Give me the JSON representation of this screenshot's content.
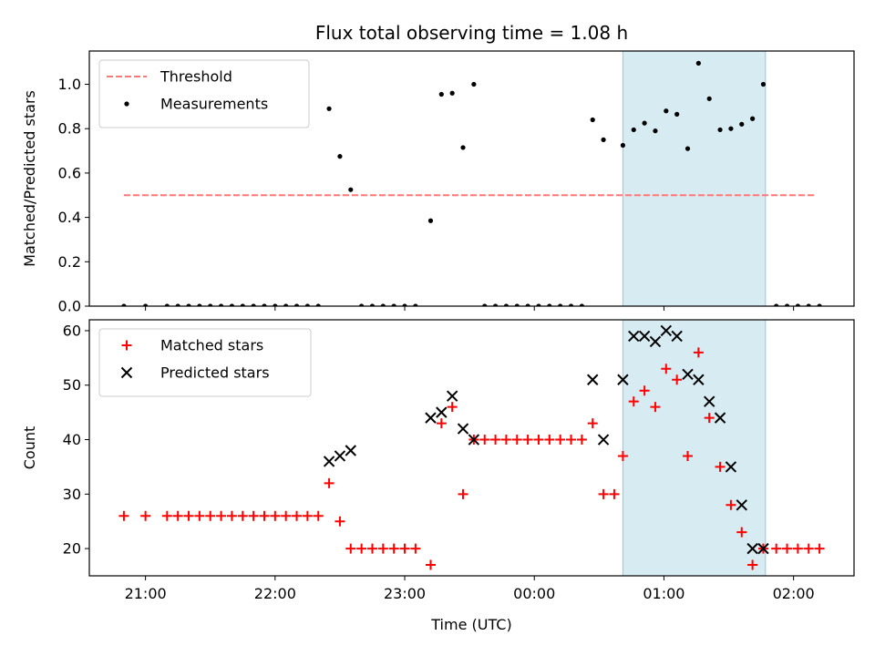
{
  "chart_data": {
    "type": "scatter",
    "title": "Flux total observing time = 1.08 h",
    "xlabel": "Time (UTC)",
    "x_ticks": [
      "21:00",
      "22:00",
      "23:00",
      "00:00",
      "01:00",
      "02:00"
    ],
    "x_range": [
      "20:34",
      "02:28"
    ],
    "highlight_span": {
      "start": "00:41",
      "end": "01:47",
      "color": "#add8e6"
    },
    "panels": [
      {
        "ylabel": "Matched/Predicted stars",
        "ylim": [
          0,
          1.15
        ],
        "y_ticks": [
          "0.0",
          "0.2",
          "0.4",
          "0.6",
          "0.8",
          "1.0"
        ],
        "legend": {
          "placement": "upper-left"
        },
        "threshold": {
          "name": "Threshold",
          "value": 0.5,
          "x_start": "20:50",
          "x_end": "02:10",
          "color": "#ff7777"
        },
        "series": [
          {
            "name": "Measurements",
            "marker": "dot",
            "color": "#000000",
            "points": [
              [
                "20:50",
                0
              ],
              [
                "21:00",
                0
              ],
              [
                "21:10",
                0
              ],
              [
                "21:15",
                0
              ],
              [
                "21:20",
                0
              ],
              [
                "21:25",
                0
              ],
              [
                "21:30",
                0
              ],
              [
                "21:35",
                0
              ],
              [
                "21:40",
                0
              ],
              [
                "21:45",
                0
              ],
              [
                "21:50",
                0
              ],
              [
                "21:55",
                0
              ],
              [
                "22:00",
                0
              ],
              [
                "22:05",
                0
              ],
              [
                "22:10",
                0
              ],
              [
                "22:15",
                0
              ],
              [
                "22:20",
                0
              ],
              [
                "22:25",
                0.89
              ],
              [
                "22:30",
                0.675
              ],
              [
                "22:35",
                0.525
              ],
              [
                "22:40",
                0
              ],
              [
                "22:45",
                0
              ],
              [
                "22:50",
                0
              ],
              [
                "22:55",
                0
              ],
              [
                "23:00",
                0
              ],
              [
                "23:05",
                0
              ],
              [
                "23:12",
                0.385
              ],
              [
                "23:17",
                0.955
              ],
              [
                "23:22",
                0.96
              ],
              [
                "23:27",
                0.715
              ],
              [
                "23:32",
                1.0
              ],
              [
                "23:37",
                0
              ],
              [
                "23:42",
                0
              ],
              [
                "23:47",
                0
              ],
              [
                "23:52",
                0
              ],
              [
                "23:57",
                0
              ],
              [
                "00:02",
                0
              ],
              [
                "00:07",
                0
              ],
              [
                "00:12",
                0
              ],
              [
                "00:17",
                0
              ],
              [
                "00:22",
                0
              ],
              [
                "00:27",
                0.84
              ],
              [
                "00:32",
                0.75
              ],
              [
                "00:41",
                0.725
              ],
              [
                "00:46",
                0.795
              ],
              [
                "00:51",
                0.825
              ],
              [
                "00:56",
                0.79
              ],
              [
                "01:01",
                0.88
              ],
              [
                "01:06",
                0.865
              ],
              [
                "01:11",
                0.71
              ],
              [
                "01:16",
                1.095
              ],
              [
                "01:21",
                0.935
              ],
              [
                "01:26",
                0.795
              ],
              [
                "01:31",
                0.8
              ],
              [
                "01:36",
                0.82
              ],
              [
                "01:41",
                0.845
              ],
              [
                "01:46",
                1.0
              ],
              [
                "01:52",
                0
              ],
              [
                "01:57",
                0
              ],
              [
                "02:02",
                0
              ],
              [
                "02:07",
                0
              ],
              [
                "02:12",
                0
              ]
            ]
          }
        ]
      },
      {
        "ylabel": "Count",
        "ylim": [
          15,
          62
        ],
        "y_ticks": [
          "20",
          "30",
          "40",
          "50",
          "60"
        ],
        "legend": {
          "placement": "upper-left"
        },
        "series": [
          {
            "name": "Matched stars",
            "marker": "plus",
            "color": "#ff0000",
            "points": [
              [
                "20:50",
                26
              ],
              [
                "21:00",
                26
              ],
              [
                "21:10",
                26
              ],
              [
                "21:15",
                26
              ],
              [
                "21:20",
                26
              ],
              [
                "21:25",
                26
              ],
              [
                "21:30",
                26
              ],
              [
                "21:35",
                26
              ],
              [
                "21:40",
                26
              ],
              [
                "21:45",
                26
              ],
              [
                "21:50",
                26
              ],
              [
                "21:55",
                26
              ],
              [
                "22:00",
                26
              ],
              [
                "22:05",
                26
              ],
              [
                "22:10",
                26
              ],
              [
                "22:15",
                26
              ],
              [
                "22:20",
                26
              ],
              [
                "22:25",
                32
              ],
              [
                "22:30",
                25
              ],
              [
                "22:35",
                20
              ],
              [
                "22:40",
                20
              ],
              [
                "22:45",
                20
              ],
              [
                "22:50",
                20
              ],
              [
                "22:55",
                20
              ],
              [
                "23:00",
                20
              ],
              [
                "23:05",
                20
              ],
              [
                "23:12",
                17
              ],
              [
                "23:17",
                43
              ],
              [
                "23:22",
                46
              ],
              [
                "23:27",
                30
              ],
              [
                "23:32",
                40
              ],
              [
                "23:37",
                40
              ],
              [
                "23:42",
                40
              ],
              [
                "23:47",
                40
              ],
              [
                "23:52",
                40
              ],
              [
                "23:57",
                40
              ],
              [
                "00:02",
                40
              ],
              [
                "00:07",
                40
              ],
              [
                "00:12",
                40
              ],
              [
                "00:17",
                40
              ],
              [
                "00:22",
                40
              ],
              [
                "00:27",
                43
              ],
              [
                "00:32",
                30
              ],
              [
                "00:37",
                30
              ],
              [
                "00:41",
                37
              ],
              [
                "00:46",
                47
              ],
              [
                "00:51",
                49
              ],
              [
                "00:56",
                46
              ],
              [
                "01:01",
                53
              ],
              [
                "01:06",
                51
              ],
              [
                "01:11",
                37
              ],
              [
                "01:16",
                56
              ],
              [
                "01:21",
                44
              ],
              [
                "01:26",
                35
              ],
              [
                "01:31",
                28
              ],
              [
                "01:36",
                23
              ],
              [
                "01:41",
                17
              ],
              [
                "01:46",
                20
              ],
              [
                "01:52",
                20
              ],
              [
                "01:57",
                20
              ],
              [
                "02:02",
                20
              ],
              [
                "02:07",
                20
              ],
              [
                "02:12",
                20
              ]
            ]
          },
          {
            "name": "Predicted stars",
            "marker": "cross",
            "color": "#000000",
            "points": [
              [
                "22:25",
                36
              ],
              [
                "22:30",
                37
              ],
              [
                "22:35",
                38
              ],
              [
                "23:12",
                44
              ],
              [
                "23:17",
                45
              ],
              [
                "23:22",
                48
              ],
              [
                "23:27",
                42
              ],
              [
                "23:32",
                40
              ],
              [
                "00:27",
                51
              ],
              [
                "00:32",
                40
              ],
              [
                "00:41",
                51
              ],
              [
                "00:46",
                59
              ],
              [
                "00:51",
                59
              ],
              [
                "00:56",
                58
              ],
              [
                "01:01",
                60
              ],
              [
                "01:06",
                59
              ],
              [
                "01:11",
                52
              ],
              [
                "01:16",
                51
              ],
              [
                "01:21",
                47
              ],
              [
                "01:26",
                44
              ],
              [
                "01:31",
                35
              ],
              [
                "01:36",
                28
              ],
              [
                "01:41",
                20
              ],
              [
                "01:46",
                20
              ]
            ]
          }
        ]
      }
    ]
  }
}
